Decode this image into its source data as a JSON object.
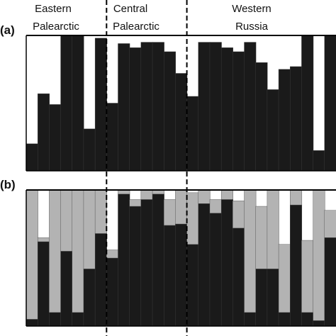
{
  "figure": {
    "panels": [
      {
        "label": "(a)"
      },
      {
        "label": "(b)"
      }
    ],
    "regions": [
      {
        "line1": "Eastern",
        "line2": "Palearctic"
      },
      {
        "line1": "Central",
        "line2": "Palearctic"
      },
      {
        "line1": "Western",
        "line2": "Russia"
      }
    ]
  },
  "colors": {
    "cluster_1": "#1a1a1a",
    "cluster_2": "#b3b3b3",
    "background": "#ffffff",
    "frame": "#000000"
  },
  "chart_data": [
    {
      "type": "bar",
      "subtype": "stacked-membership",
      "panel": "(a)",
      "ylim": [
        0,
        1
      ],
      "region_sizes": [
        7,
        7,
        13
      ],
      "series": [
        {
          "values": [
            0.2,
            0.57,
            0.49,
            1.0,
            1.0,
            0.31,
            0.98,
            0.5,
            0.94,
            0.91,
            0.95,
            0.95,
            0.88,
            0.72,
            0.55,
            0.95,
            0.95,
            0.91,
            0.88,
            0.95,
            0.8,
            0.6,
            0.75,
            0.77,
            1.0,
            0.15,
            1.0
          ]
        }
      ]
    },
    {
      "type": "bar",
      "subtype": "stacked-membership",
      "panel": "(b)",
      "ylim": [
        0,
        1
      ],
      "region_sizes": [
        7,
        7,
        13
      ],
      "series": [
        {
          "values": [
            0.05,
            0.62,
            0.1,
            0.55,
            0.1,
            0.42,
            0.68,
            0.5,
            0.97,
            0.88,
            0.93,
            0.97,
            0.74,
            0.75,
            0.6,
            0.9,
            0.83,
            0.93,
            0.72,
            0.1,
            0.42,
            0.42,
            0.1,
            0.89,
            0.1,
            0.04,
            0.65
          ]
        },
        {
          "values": [
            0.95,
            0.03,
            0.9,
            0.45,
            0.9,
            0.58,
            0.32,
            0.06,
            0.03,
            0.05,
            0.07,
            0.03,
            0.19,
            0.25,
            0.38,
            0.1,
            0.1,
            0.07,
            0.2,
            0.9,
            0.46,
            0.58,
            0.5,
            0.11,
            0.53,
            0.96,
            0.2
          ]
        }
      ]
    }
  ]
}
